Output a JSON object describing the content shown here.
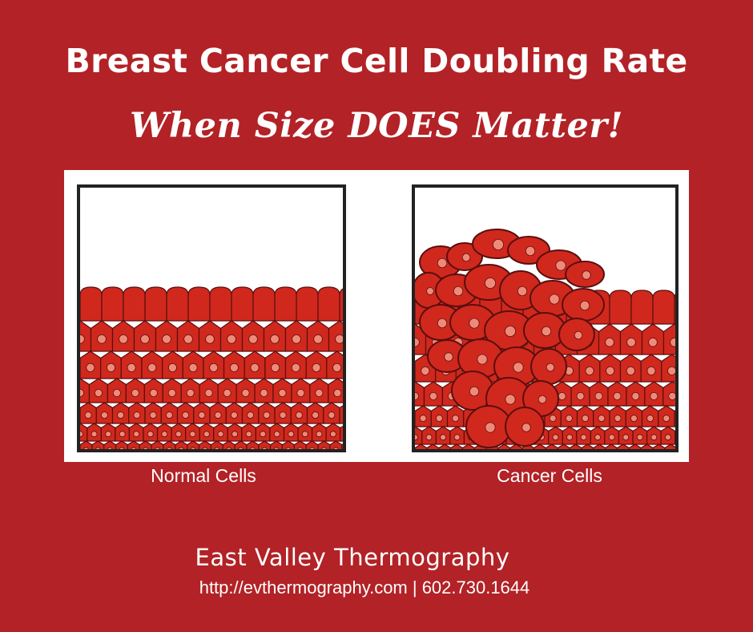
{
  "header": {
    "title": "Breast Cancer Cell Doubling Rate",
    "subtitle": "When Size DOES Matter!"
  },
  "diagram": {
    "left_caption": "Normal Cells",
    "right_caption": "Cancer Cells",
    "colors": {
      "background": "#b22226",
      "cell_fill": "#d0281d",
      "cell_outline": "#5a0f0f",
      "nucleus": "#f08a78",
      "frame": "#222222"
    }
  },
  "footer": {
    "company": "East Valley Thermography",
    "contact": "http://evthermography.com | 602.730.1644"
  }
}
